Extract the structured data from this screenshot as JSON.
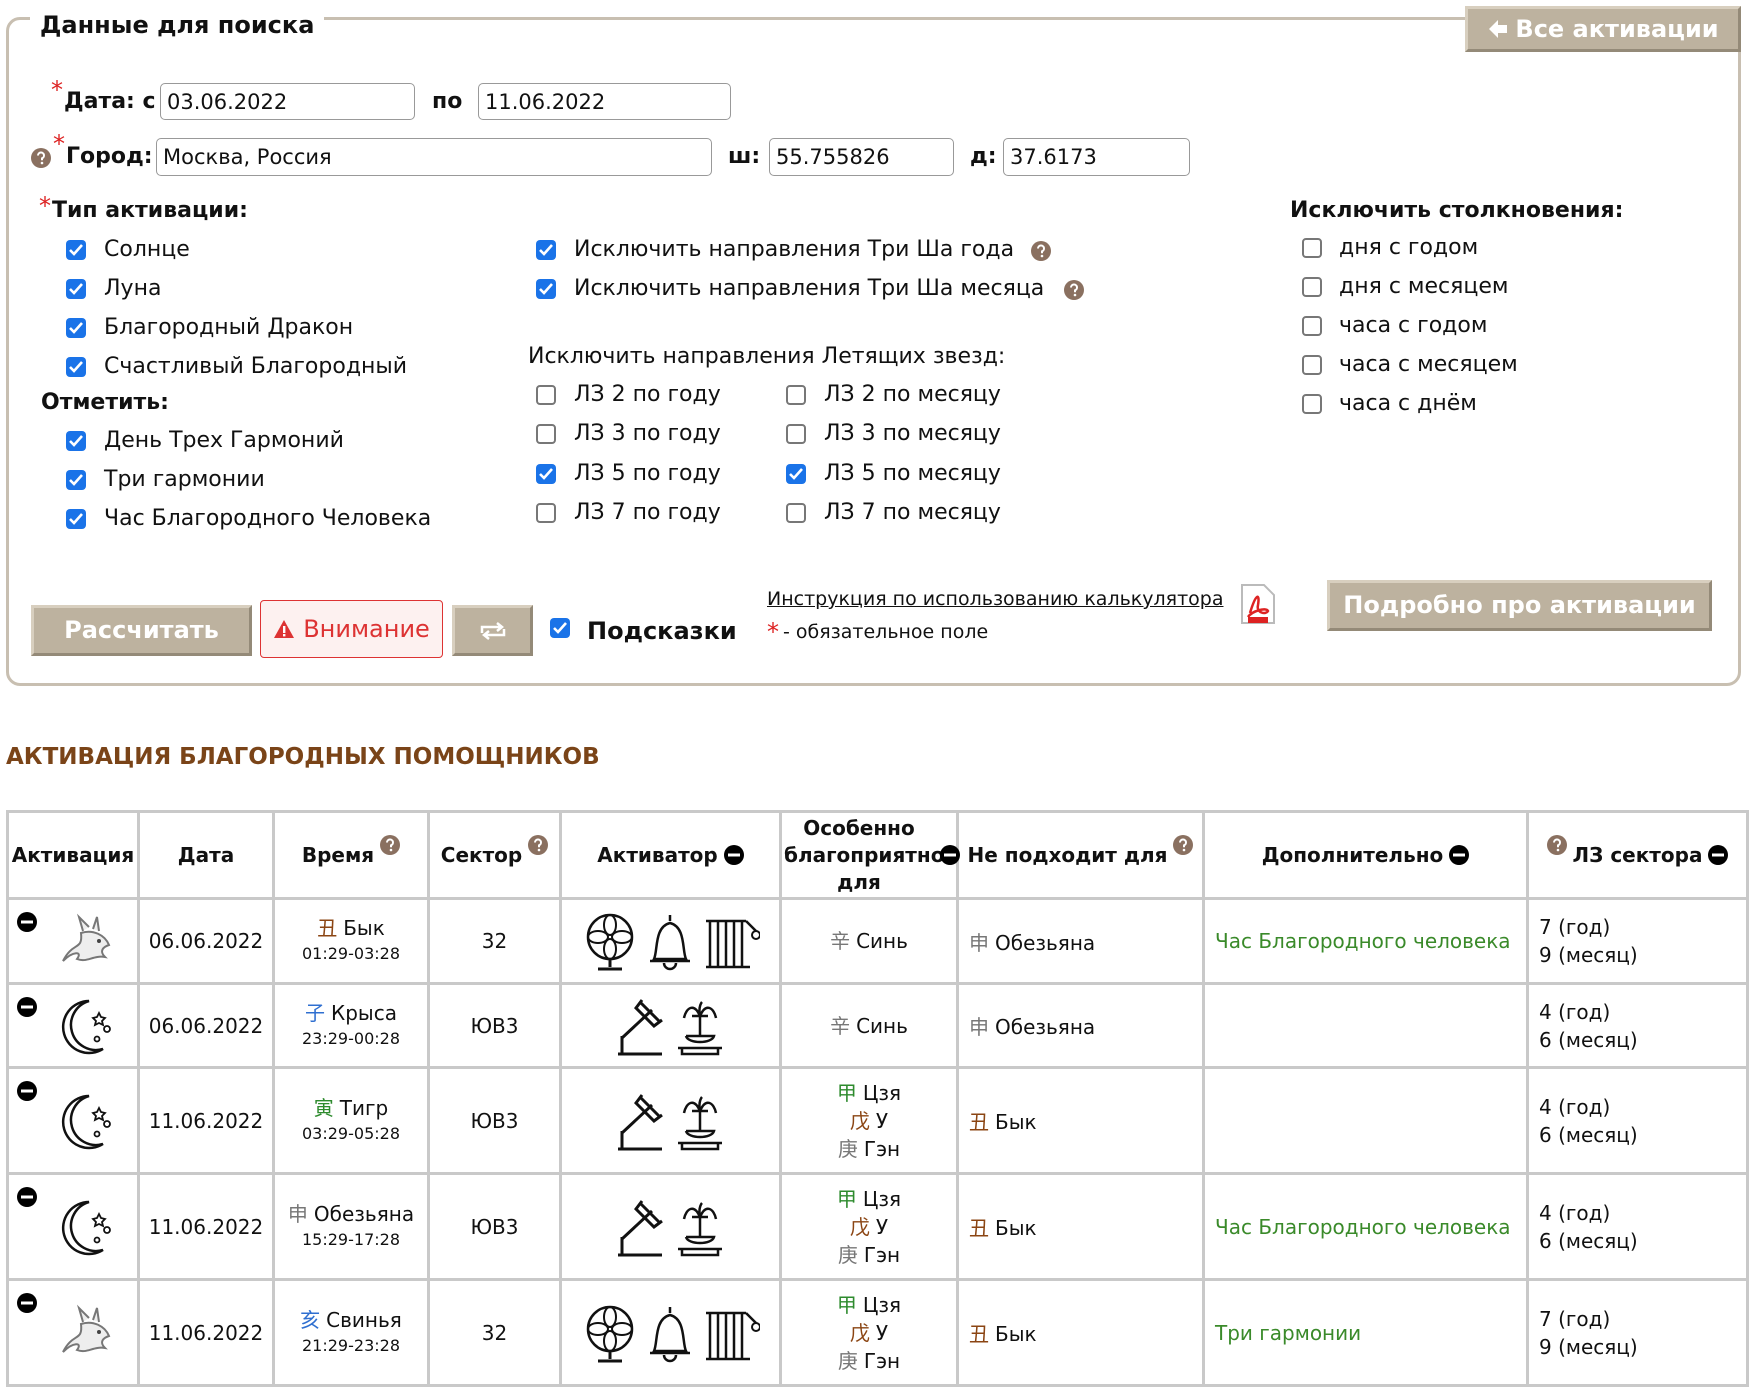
{
  "form": {
    "legend": "Данные для поиска",
    "all_button": "Все активации",
    "required_mark": "*",
    "date_label": "Дата: с",
    "date_from": "03.06.2022",
    "date_to_label": "по",
    "date_to": "11.06.2022",
    "city_label": "Город:",
    "city": "Москва, Россия",
    "lat_label": "ш:",
    "lat": "55.755826",
    "lon_label": "д:",
    "lon": "37.6173",
    "activation_type": {
      "title": "Тип активации:",
      "options": [
        {
          "label": "Солнце",
          "checked": true
        },
        {
          "label": "Луна",
          "checked": true
        },
        {
          "label": "Благородный Дракон",
          "checked": true
        },
        {
          "label": "Счастливый Благородный",
          "checked": true
        }
      ]
    },
    "mark": {
      "title": "Отметить:",
      "options": [
        {
          "label": "День Трех Гармоний",
          "checked": true
        },
        {
          "label": "Три гармонии",
          "checked": true
        },
        {
          "label": "Час Благородного Человека",
          "checked": true
        }
      ]
    },
    "three_sha": [
      {
        "label": "Исключить направления Три Ша года",
        "checked": true
      },
      {
        "label": "Исключить направления Три Ша месяца",
        "checked": true
      }
    ],
    "flying_stars": {
      "title": "Исключить направления Летящих звезд:",
      "year": [
        {
          "label": "ЛЗ 2 по году",
          "checked": false
        },
        {
          "label": "ЛЗ 3 по году",
          "checked": false
        },
        {
          "label": "ЛЗ 5 по году",
          "checked": true
        },
        {
          "label": "ЛЗ 7 по году",
          "checked": false
        }
      ],
      "month": [
        {
          "label": "ЛЗ 2 по месяцу",
          "checked": false
        },
        {
          "label": "ЛЗ 3 по месяцу",
          "checked": false
        },
        {
          "label": "ЛЗ 5 по месяцу",
          "checked": true
        },
        {
          "label": "ЛЗ 7 по месяцу",
          "checked": false
        }
      ]
    },
    "clashes": {
      "title": "Исключить столкновения:",
      "options": [
        {
          "label": "дня с годом",
          "checked": false
        },
        {
          "label": "дня с месяцем",
          "checked": false
        },
        {
          "label": "часа с годом",
          "checked": false
        },
        {
          "label": "часа с месяцем",
          "checked": false
        },
        {
          "label": "часа с днём",
          "checked": false
        }
      ]
    },
    "calculate": "Рассчитать",
    "warning": "Внимание",
    "hints": "Подсказки",
    "hints_checked": true,
    "details": "Подробно про активации",
    "instruction": "Инструкция по использованию калькулятора",
    "required_note": "- обязательное поле"
  },
  "section_title": "АКТИВАЦИЯ БЛАГОРОДНЫХ ПОМОЩНИКОВ",
  "table": {
    "headers": [
      "Активация",
      "Дата",
      "Время",
      "Сектор",
      "Активатор",
      "Особенно благоприятно для",
      "Не подходит для",
      "Дополнительно",
      "ЛЗ сектора"
    ],
    "rows": [
      {
        "date": "06.06.2022",
        "time": {
          "char": "丑",
          "name": "Бык",
          "color": "#8b4513",
          "range": "01:29-03:28"
        },
        "sector": "32",
        "favorable": [
          {
            "char": "辛",
            "name": "Синь",
            "color": "#777777"
          }
        ],
        "unsuitable": {
          "char": "申",
          "name": "Обезьяна",
          "color": "#777777"
        },
        "extra": "Час Благородного человека",
        "lz": [
          "7 (год)",
          "9 (месяц)"
        ]
      },
      {
        "date": "06.06.2022",
        "time": {
          "char": "子",
          "name": "Крыса",
          "color": "#2f6fd0",
          "range": "23:29-00:28"
        },
        "sector": "ЮВ3",
        "favorable": [
          {
            "char": "辛",
            "name": "Синь",
            "color": "#777777"
          }
        ],
        "unsuitable": {
          "char": "申",
          "name": "Обезьяна",
          "color": "#777777"
        },
        "lz": [
          "4 (год)",
          "6 (месяц)"
        ]
      },
      {
        "date": "11.06.2022",
        "time": {
          "char": "寅",
          "name": "Тигр",
          "color": "#2e8b2e",
          "range": "03:29-05:28"
        },
        "sector": "ЮВ3",
        "favorable": [
          {
            "char": "甲",
            "name": "Цзя",
            "color": "#2e8b2e"
          },
          {
            "char": "戊",
            "name": "У",
            "color": "#8b4513"
          },
          {
            "char": "庚",
            "name": "Гэн",
            "color": "#777777"
          }
        ],
        "unsuitable": {
          "char": "丑",
          "name": "Бык",
          "color": "#8b4513"
        },
        "lz": [
          "4 (год)",
          "6 (месяц)"
        ]
      },
      {
        "date": "11.06.2022",
        "time": {
          "char": "申",
          "name": "Обезьяна",
          "color": "#777777",
          "range": "15:29-17:28"
        },
        "sector": "ЮВ3",
        "favorable": [
          {
            "char": "甲",
            "name": "Цзя",
            "color": "#2e8b2e"
          },
          {
            "char": "戊",
            "name": "У",
            "color": "#8b4513"
          },
          {
            "char": "庚",
            "name": "Гэн",
            "color": "#777777"
          }
        ],
        "unsuitable": {
          "char": "丑",
          "name": "Бык",
          "color": "#8b4513"
        },
        "extra": "Час Благородного человека",
        "lz": [
          "4 (год)",
          "6 (месяц)"
        ]
      },
      {
        "date": "11.06.2022",
        "time": {
          "char": "亥",
          "name": "Свинья",
          "color": "#2f6fd0",
          "range": "21:29-23:28"
        },
        "sector": "32",
        "favorable": [
          {
            "char": "甲",
            "name": "Цзя",
            "color": "#2e8b2e"
          },
          {
            "char": "戊",
            "name": "У",
            "color": "#8b4513"
          },
          {
            "char": "庚",
            "name": "Гэн",
            "color": "#777777"
          }
        ],
        "unsuitable": {
          "char": "丑",
          "name": "Бык",
          "color": "#8b4513"
        },
        "extra": "Три гармонии",
        "lz": [
          "7 (год)",
          "9 (месяц)"
        ]
      }
    ]
  }
}
